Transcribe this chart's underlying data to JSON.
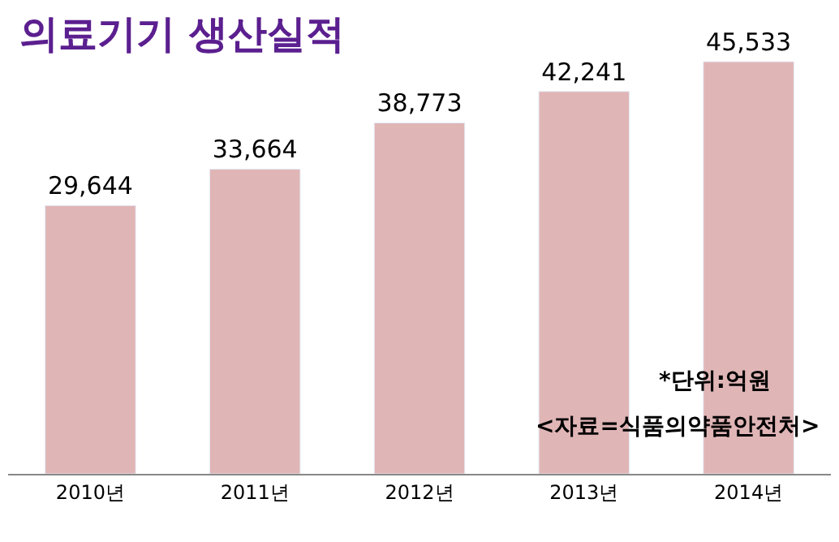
{
  "chart_data": {
    "type": "bar",
    "title": "의료기기 생산실적",
    "categories": [
      "2010년",
      "2011년",
      "2012년",
      "2013년",
      "2014년"
    ],
    "values": [
      29644,
      33664,
      38773,
      42241,
      45533
    ],
    "color": "#e0b5b6",
    "value_labels": [
      "29,644",
      "33,664",
      "38,773",
      "42,241",
      "45,533"
    ],
    "annotations": [
      "*단위:억원",
      "<자료=식품의약품안전처>"
    ]
  }
}
